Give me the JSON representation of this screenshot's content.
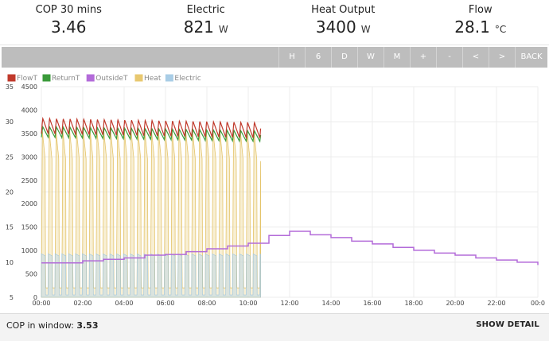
{
  "stats": [
    {
      "label": "COP 30 mins",
      "value": "3.46",
      "unit": ""
    },
    {
      "label": "Electric",
      "value": "821",
      "unit": "W"
    },
    {
      "label": "Heat Output",
      "value": "3400",
      "unit": "W"
    },
    {
      "label": "Flow",
      "value": "28.1",
      "unit": "°C"
    }
  ],
  "toolbar": {
    "buttons": [
      "H",
      "6",
      "D",
      "W",
      "M",
      "+",
      "-",
      "<",
      ">",
      "BACK"
    ]
  },
  "footer": {
    "cop_label": "COP in window:",
    "cop_value": "3.53",
    "detail_label": "SHOW DETAIL"
  },
  "chart_data": {
    "type": "line",
    "legend": [
      {
        "name": "FlowT",
        "color": "#c0392b"
      },
      {
        "name": "ReturnT",
        "color": "#3a9a3a"
      },
      {
        "name": "OutsideT",
        "color": "#b36bd9"
      },
      {
        "name": "Heat",
        "color": "#e8c870"
      },
      {
        "name": "Electric",
        "color": "#a9cde6"
      }
    ],
    "y_left_ticks": [
      "35",
      "30",
      "25",
      "20",
      "15",
      "10",
      "5"
    ],
    "y_left_range": [
      5,
      35
    ],
    "y_power_ticks": [
      "4500",
      "4000",
      "3500",
      "3000",
      "2500",
      "2000",
      "1500",
      "1000",
      "500",
      "0"
    ],
    "y_power_range": [
      0,
      4500
    ],
    "x_ticks": [
      "00:00",
      "02:00",
      "04:00",
      "06:00",
      "08:00",
      "10:00",
      "12:00",
      "14:00",
      "16:00",
      "18:00",
      "20:00",
      "22:00",
      "00:0"
    ],
    "x_range_hours": [
      0,
      24
    ],
    "data_end_hour": 10.6,
    "cycle_period_hours": 0.33,
    "flowT_peak": 30.5,
    "flowT_trough": 28.3,
    "returnT_peak": 29.3,
    "returnT_trough": 27.8,
    "heat_peak_w": 3550,
    "heat_trough_w": 200,
    "electric_on_w": 930,
    "electric_off_w": 50,
    "outsideT_steps": [
      [
        0.0,
        9.9
      ],
      [
        1.0,
        9.9
      ],
      [
        2.0,
        10.2
      ],
      [
        3.0,
        10.4
      ],
      [
        4.0,
        10.6
      ],
      [
        5.0,
        11.0
      ],
      [
        6.0,
        11.1
      ],
      [
        7.0,
        11.5
      ],
      [
        8.0,
        11.9
      ],
      [
        9.0,
        12.3
      ],
      [
        10.0,
        12.7
      ],
      [
        11.0,
        13.8
      ],
      [
        12.0,
        14.4
      ],
      [
        13.0,
        13.9
      ],
      [
        14.0,
        13.5
      ],
      [
        15.0,
        13.0
      ],
      [
        16.0,
        12.6
      ],
      [
        17.0,
        12.1
      ],
      [
        18.0,
        11.7
      ],
      [
        19.0,
        11.3
      ],
      [
        20.0,
        11.0
      ],
      [
        21.0,
        10.6
      ],
      [
        22.0,
        10.3
      ],
      [
        23.0,
        10.0
      ],
      [
        24.0,
        9.6
      ]
    ]
  }
}
